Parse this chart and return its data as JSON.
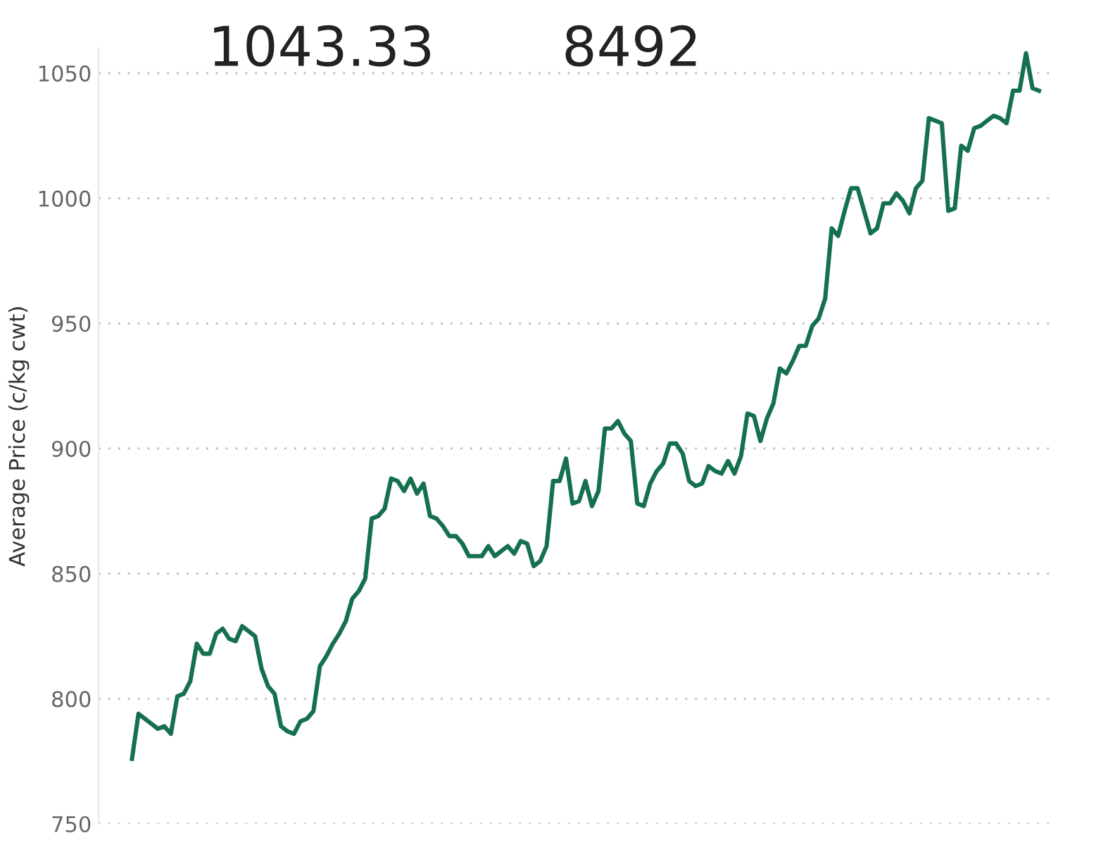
{
  "chart_data": {
    "type": "line",
    "ylabel": "Average Price (c/kg cwt)",
    "annotations": [
      "1043.33",
      "8492"
    ],
    "categories": [
      null,
      null,
      null,
      null,
      null,
      null,
      null,
      null,
      null,
      null,
      null,
      null,
      null,
      null,
      null,
      null,
      null,
      null,
      null,
      null,
      null,
      null,
      null,
      null,
      null,
      null,
      null,
      null,
      null,
      null,
      null,
      null,
      null,
      null,
      null,
      null,
      null,
      null,
      null,
      null,
      null,
      null,
      null,
      null,
      null,
      null,
      null,
      null,
      null,
      null,
      null,
      null,
      null,
      null,
      null,
      null,
      null,
      null,
      null,
      null,
      null,
      null,
      null,
      null,
      null,
      null,
      null,
      null,
      null,
      null,
      null,
      null,
      null,
      null,
      null,
      null,
      null,
      null,
      null,
      null,
      null,
      null,
      null,
      null,
      null,
      null,
      null,
      null,
      null,
      null,
      null,
      null,
      null,
      null,
      null,
      null,
      null,
      null,
      null,
      null,
      null,
      null,
      null,
      null,
      null,
      null,
      null,
      null,
      null,
      null,
      null,
      null,
      null,
      null,
      null,
      null,
      null,
      null,
      null,
      null,
      null,
      null,
      null,
      null,
      null,
      null,
      null,
      null,
      null,
      null,
      null,
      null,
      null,
      null,
      null,
      null,
      null,
      null,
      null,
      null,
      null
    ],
    "series": [
      {
        "color": "#15704e",
        "values": [
          776,
          794,
          792,
          790,
          788,
          789,
          786,
          801,
          802,
          807,
          822,
          818,
          818,
          826,
          828,
          824,
          823,
          829,
          827,
          825,
          812,
          805,
          802,
          789,
          787,
          786,
          791,
          792,
          795,
          813,
          817,
          822,
          826,
          831,
          840,
          843,
          848,
          872,
          873,
          876,
          888,
          887,
          883,
          888,
          882,
          886,
          873,
          872,
          869,
          865,
          865,
          862,
          857,
          857,
          857,
          861,
          857,
          859,
          861,
          858,
          863,
          862,
          853,
          855,
          861,
          887,
          887,
          896,
          878,
          879,
          887,
          877,
          883,
          908,
          908,
          911,
          906,
          903,
          878,
          877,
          886,
          891,
          894,
          902,
          902,
          898,
          887,
          885,
          886,
          893,
          891,
          890,
          895,
          890,
          897,
          914,
          913,
          903,
          912,
          918,
          932,
          930,
          935,
          941,
          941,
          949,
          952,
          960,
          988,
          985,
          995,
          1004,
          1004,
          995,
          986,
          988,
          998,
          998,
          1002,
          999,
          994,
          1004,
          1007,
          1032,
          1031,
          1030,
          995,
          996,
          1021,
          1019,
          1028,
          1029,
          1031,
          1033,
          1032,
          1030,
          1043,
          1043,
          1058,
          1044,
          1043
        ]
      }
    ],
    "ylim": [
      750,
      1060
    ],
    "yticks": [
      750,
      800,
      850,
      900,
      950,
      1000,
      1050
    ],
    "grid": "y",
    "legend": false,
    "tick_labels": "y",
    "marker": "none",
    "line_style": "solid"
  }
}
